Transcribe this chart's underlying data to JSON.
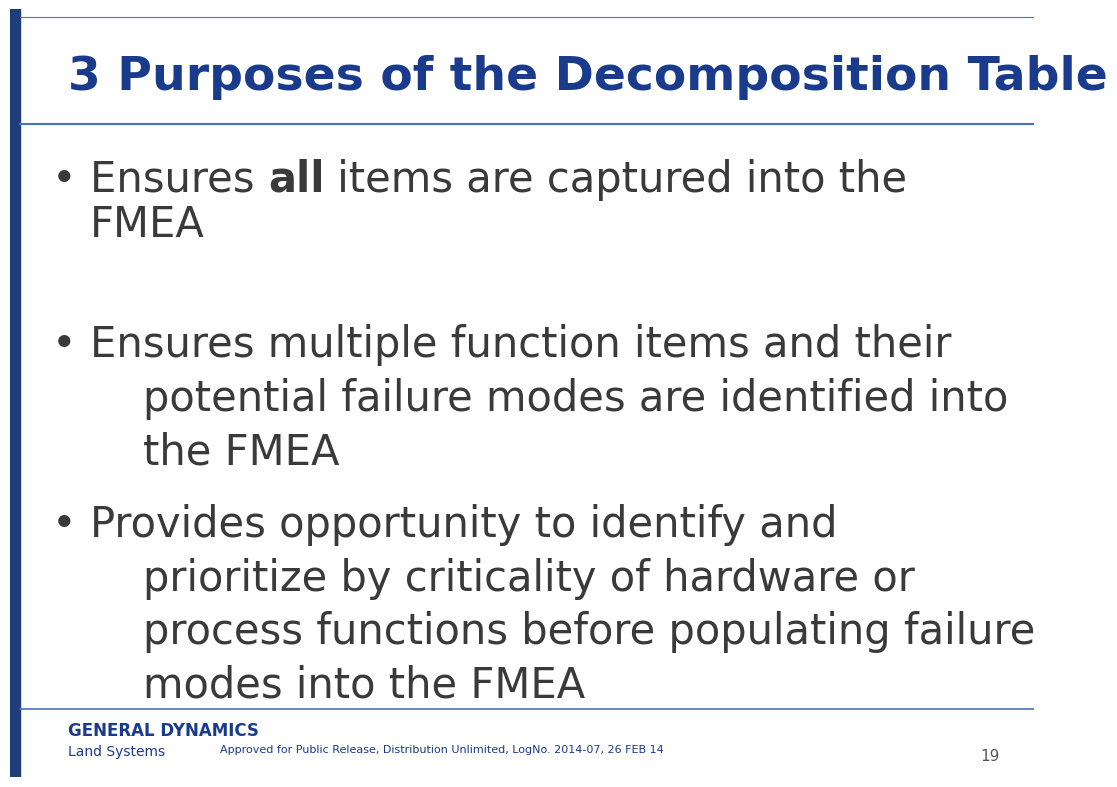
{
  "title": "3 Purposes of the Decomposition Table",
  "title_color": "#1a3a8c",
  "title_fontsize": 34,
  "background_color": "#ffffff",
  "left_bar_color": "#1f3d7a",
  "header_line_color": "#4472c4",
  "bullet_text_color": "#3a3a3a",
  "bullet_fontsize": 30,
  "bullets": [
    {
      "text_parts": [
        {
          "text": "Ensures ",
          "bold": false
        },
        {
          "text": "all",
          "bold": true
        },
        {
          "text": " items are captured into the\n    FMEA",
          "bold": false
        }
      ]
    },
    {
      "text_parts": [
        {
          "text": "Ensures multiple function items and their\n    potential failure modes are identified into\n    the FMEA",
          "bold": false
        }
      ]
    },
    {
      "text_parts": [
        {
          "text": "Provides opportunity to identify and\n    prioritize by criticality of hardware or\n    process functions before populating failure\n    modes into the FMEA",
          "bold": false
        }
      ]
    }
  ],
  "footer_text_gd": "GENERAL DYNAMICS",
  "footer_text_ls": "Land Systems",
  "footer_text_approved": "Approved for Public Release, Distribution Unlimited, LogNo. 2014-07, 26 FEB 14",
  "footer_page_num": "19",
  "footer_color": "#1a3a8c",
  "footer_fontsize_gd": 12,
  "footer_fontsize_ls": 10,
  "footer_fontsize_approved": 8,
  "footer_fontsize_pagenum": 11
}
